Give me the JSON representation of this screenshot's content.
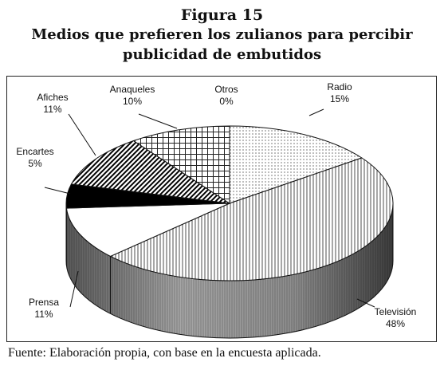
{
  "figure_label": "Figura 15",
  "title_line1": "Medios que prefieren los zulianos para percibir",
  "title_line2": "publicidad de embutidos",
  "source_note": "Fuente: Elaboración propia, con base en la encuesta aplicada.",
  "chart_data": {
    "type": "pie",
    "three_d": true,
    "legend": "none",
    "slices": [
      {
        "name": "Radio",
        "value": 15,
        "label": "15%",
        "pattern": "dots"
      },
      {
        "name": "Televisión",
        "value": 48,
        "label": "48%",
        "pattern": "vertical-lines"
      },
      {
        "name": "Prensa",
        "value": 11,
        "label": "11%",
        "pattern": "solid-white"
      },
      {
        "name": "Encartes",
        "value": 5,
        "label": "5%",
        "pattern": "solid-black"
      },
      {
        "name": "Afiches",
        "value": 11,
        "label": "11%",
        "pattern": "diagonal-stripes"
      },
      {
        "name": "Anaqueles",
        "value": 10,
        "label": "10%",
        "pattern": "grid"
      },
      {
        "name": "Otros",
        "value": 0,
        "label": "0%",
        "pattern": "none"
      }
    ]
  }
}
